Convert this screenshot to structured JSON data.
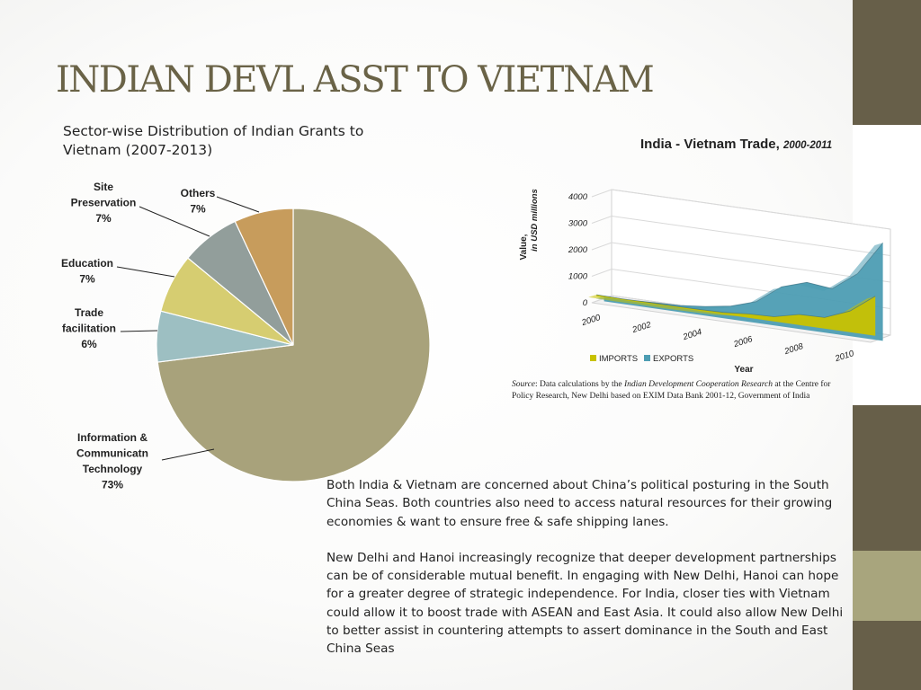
{
  "slide": {
    "title": "INDIAN DEVL ASST TO VIETNAM",
    "side_bar_colors": [
      "#675f49",
      "#ffffff",
      "#675f49",
      "#a8a57d",
      "#675f49"
    ]
  },
  "body": {
    "para1": "Both India & Vietnam are concerned about China’s political posturing in the South China Seas.  Both countries also need to access natural resources for their growing economies & want to ensure free & safe shipping lanes.",
    "para2": "New Delhi and Hanoi increasingly recognize that deeper development partnerships can be of considerable mutual benefit. In engaging with New Delhi, Hanoi can hope for a greater degree of strategic independence. For India, closer ties with Vietnam could allow it to boost trade with ASEAN and East Asia. It could also allow New Delhi to better assist in countering attempts to assert dominance in the South and East China Seas"
  },
  "chart_data": [
    {
      "type": "pie",
      "title": "Sector-wise Distribution of Indian Grants to Vietnam (2007-2013)",
      "slices": [
        {
          "label": "Information & Communicatn Technology",
          "lines": [
            "Information &",
            "Communicatn",
            "Technology",
            "73%"
          ],
          "percent": 73,
          "color": "#a8a27b"
        },
        {
          "label": "Trade facilitation",
          "lines": [
            "Trade",
            "facilitation",
            "6%"
          ],
          "percent": 6,
          "color": "#9dbfc2"
        },
        {
          "label": "Education",
          "lines": [
            "Education",
            "7%"
          ],
          "percent": 7,
          "color": "#d6cd71"
        },
        {
          "label": "Site Preservation",
          "lines": [
            "Site",
            "Preservation",
            "7%"
          ],
          "percent": 7,
          "color": "#929e9b"
        },
        {
          "label": "Others",
          "lines": [
            "Others",
            "7%"
          ],
          "percent": 7,
          "color": "#c79c5c"
        }
      ]
    },
    {
      "type": "area",
      "title": "India - Vietnam Trade,",
      "title_years": "2000-2011",
      "ylabel_line1": "Value,",
      "ylabel_line2": "in USD millions",
      "xlabel": "Year",
      "ylim": [
        0,
        4000
      ],
      "y_ticks": [
        "0",
        "1000",
        "2000",
        "3000",
        "4000"
      ],
      "x_tick_labels": [
        "2000",
        "2002",
        "2004",
        "2006",
        "2008",
        "2010"
      ],
      "x": [
        2000,
        2001,
        2002,
        2003,
        2004,
        2005,
        2006,
        2007,
        2008,
        2009,
        2010,
        2011
      ],
      "series": [
        {
          "name": "IMPORTS",
          "color": "#c8c200",
          "values": [
            60,
            40,
            50,
            45,
            55,
            70,
            150,
            180,
            400,
            420,
            800,
            1500
          ]
        },
        {
          "name": "EXPORTS",
          "color": "#4d9db3",
          "values": [
            200,
            180,
            220,
            250,
            350,
            500,
            800,
            1500,
            1800,
            1700,
            2400,
            3700
          ]
        }
      ],
      "source_label": "Source",
      "source_pre": ": Data calculations by the ",
      "source_italic": "Indian Development Cooperation Research",
      "source_post": " at the Centre for Policy Research, New Delhi based on EXIM Data Bank 2001-12, Government of India"
    }
  ]
}
